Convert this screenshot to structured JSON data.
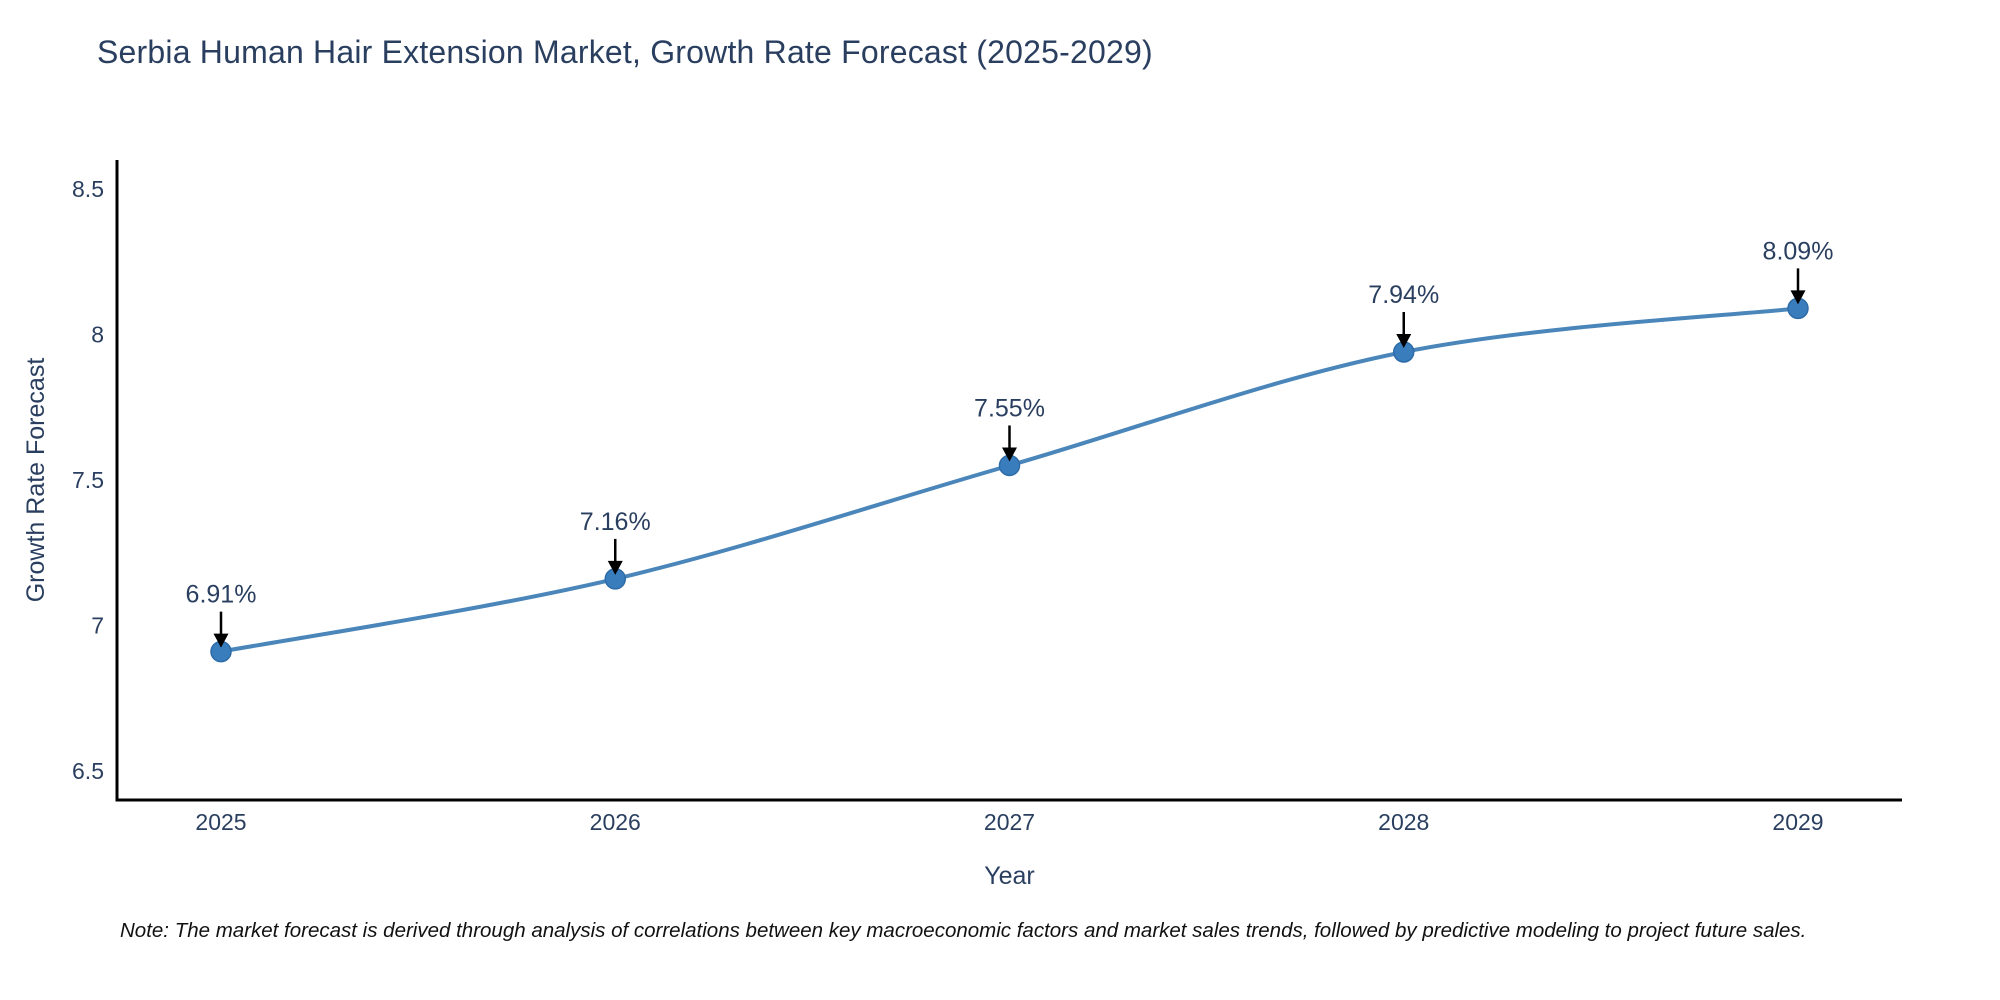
{
  "chart_data": {
    "type": "line",
    "title": "Serbia Human Hair Extension Market, Growth Rate Forecast (2025-2029)",
    "xlabel": "Year",
    "ylabel": "Growth Rate Forecast",
    "categories": [
      "2025",
      "2026",
      "2027",
      "2028",
      "2029"
    ],
    "values": [
      6.91,
      7.16,
      7.55,
      7.94,
      8.09
    ],
    "point_labels": [
      "6.91%",
      "7.16%",
      "7.55%",
      "7.94%",
      "8.09%"
    ],
    "yticks": [
      6.5,
      7.0,
      7.5,
      8.0,
      8.5
    ],
    "ytick_labels": [
      "6.5",
      "7",
      "7.5",
      "8",
      "8.5"
    ],
    "ylim": [
      6.4,
      8.6
    ],
    "grid": false,
    "legend": "none",
    "line_shape": "spline",
    "annotations_have_arrows": true,
    "colors": {
      "line": "#4a86ba",
      "marker": "#3a7dbd",
      "marker_edge": "#2d6ca8",
      "arrow": "#000000",
      "label_text": "#2a3f5f",
      "tick_text": "#2a3f5f",
      "axis_line": "#000000",
      "background": "#ffffff"
    }
  },
  "footnote": "Note: The market forecast is derived through analysis of correlations between key macroeconomic factors and market sales trends, followed by predictive modeling to project future sales."
}
